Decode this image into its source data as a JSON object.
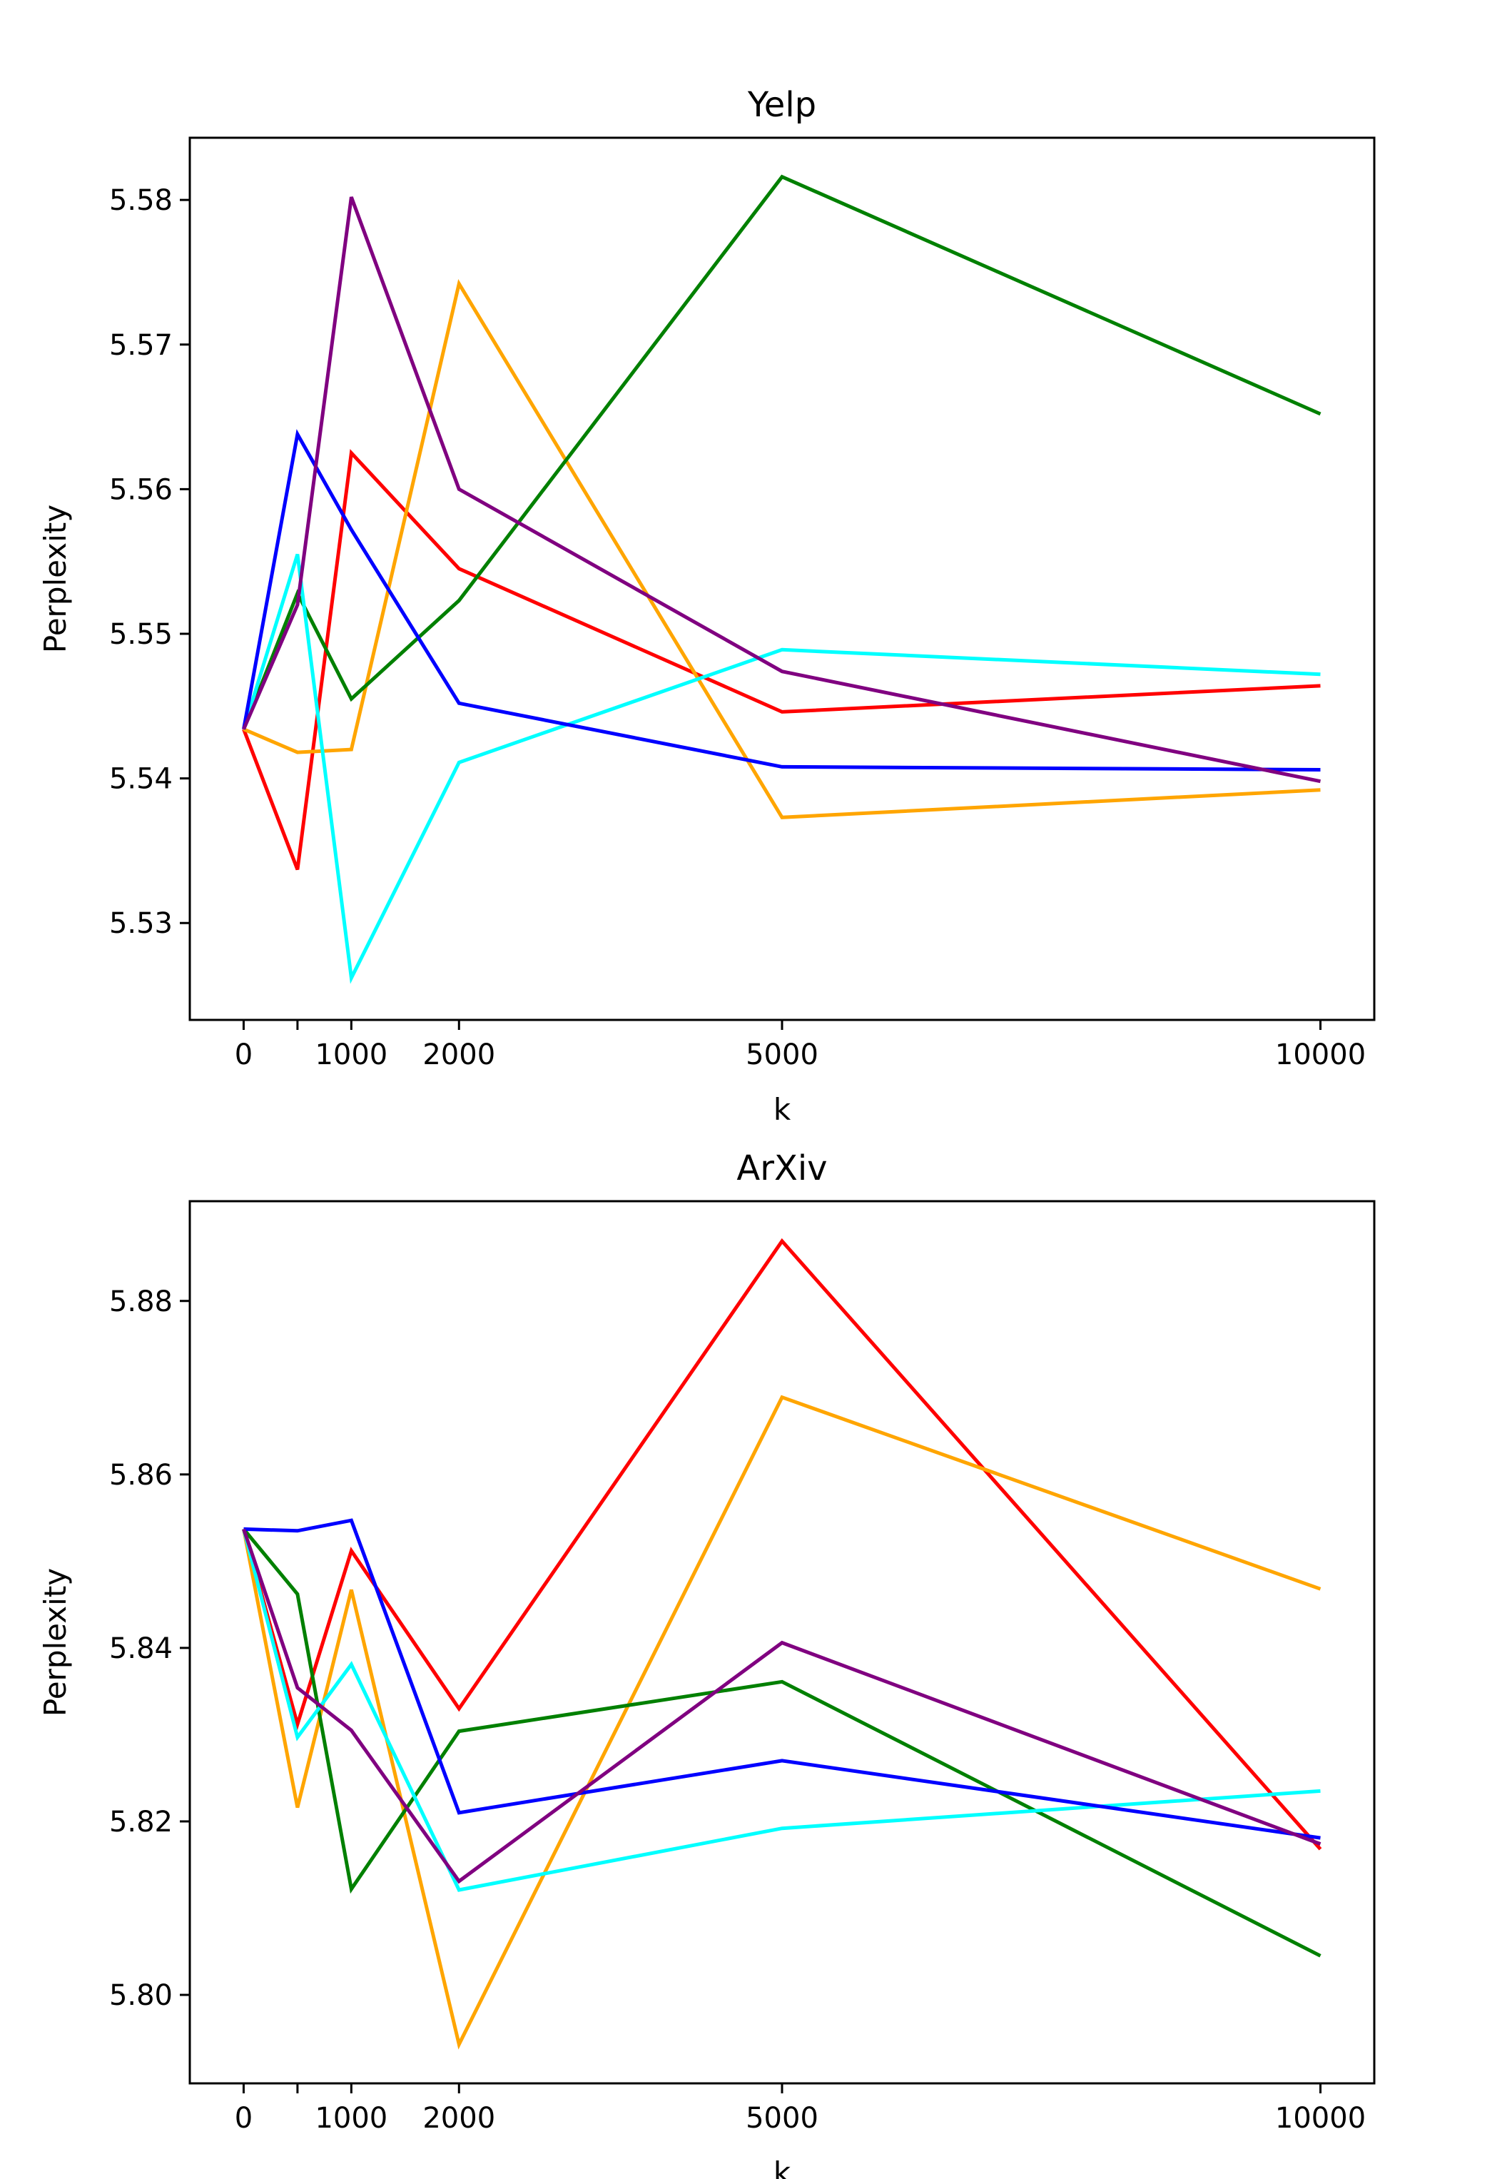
{
  "chart_data": [
    {
      "type": "line",
      "title": "Yelp",
      "xlabel": "k",
      "ylabel": "Perplexity",
      "x": [
        0,
        500,
        1000,
        2000,
        5000,
        10000
      ],
      "xticks": [
        0,
        1000,
        2000,
        5000,
        10000
      ],
      "xtick_labels": [
        "0",
        "1000",
        "2000",
        "5000",
        "10000"
      ],
      "xlim": [
        -500,
        10500
      ],
      "yticks": [
        5.53,
        5.54,
        5.55,
        5.56,
        5.57,
        5.58
      ],
      "ytick_labels": [
        "5.53",
        "5.54",
        "5.55",
        "5.56",
        "5.57",
        "5.58"
      ],
      "ylim": [
        5.5233,
        5.5843
      ],
      "series": [
        {
          "name": "red",
          "color": "#ff0000",
          "values": [
            5.5434,
            5.5337,
            5.5625,
            5.5545,
            5.5446,
            5.5464
          ]
        },
        {
          "name": "orange",
          "color": "#ffa500",
          "values": [
            5.5434,
            5.5418,
            5.542,
            5.5742,
            5.5373,
            5.5392
          ]
        },
        {
          "name": "green",
          "color": "#008000",
          "values": [
            5.5434,
            5.5528,
            5.5455,
            5.5523,
            5.5816,
            5.5652
          ]
        },
        {
          "name": "cyan",
          "color": "#00ffff",
          "values": [
            5.5434,
            5.5555,
            5.5262,
            5.5411,
            5.5489,
            5.5472
          ]
        },
        {
          "name": "blue",
          "color": "#0000ff",
          "values": [
            5.5434,
            5.5638,
            5.5572,
            5.5452,
            5.5408,
            5.5406
          ]
        },
        {
          "name": "purple",
          "color": "#800080",
          "values": [
            5.5434,
            5.552,
            5.5802,
            5.56,
            5.5474,
            5.5398
          ]
        }
      ]
    },
    {
      "type": "line",
      "title": "ArXiv",
      "xlabel": "k",
      "ylabel": "Perplexity",
      "x": [
        0,
        500,
        1000,
        2000,
        5000,
        10000
      ],
      "xticks": [
        0,
        1000,
        2000,
        5000,
        10000
      ],
      "xtick_labels": [
        "0",
        "1000",
        "2000",
        "5000",
        "10000"
      ],
      "xlim": [
        -500,
        10500
      ],
      "yticks": [
        5.8,
        5.82,
        5.84,
        5.86,
        5.88
      ],
      "ytick_labels": [
        "5.80",
        "5.82",
        "5.84",
        "5.86",
        "5.88"
      ],
      "ylim": [
        5.7898,
        5.8915
      ],
      "series": [
        {
          "name": "red",
          "color": "#ff0000",
          "values": [
            5.8537,
            5.8312,
            5.8512,
            5.833,
            5.8869,
            5.8168
          ]
        },
        {
          "name": "orange",
          "color": "#ffa500",
          "values": [
            5.8537,
            5.8216,
            5.8467,
            5.7943,
            5.8689,
            5.8468
          ]
        },
        {
          "name": "green",
          "color": "#008000",
          "values": [
            5.8537,
            5.8462,
            5.8122,
            5.8304,
            5.8361,
            5.8045
          ]
        },
        {
          "name": "cyan",
          "color": "#00ffff",
          "values": [
            5.8537,
            5.8297,
            5.8381,
            5.8121,
            5.8192,
            5.8235
          ]
        },
        {
          "name": "blue",
          "color": "#0000ff",
          "values": [
            5.8537,
            5.8535,
            5.8547,
            5.821,
            5.827,
            5.8181
          ]
        },
        {
          "name": "purple",
          "color": "#800080",
          "values": [
            5.8537,
            5.8354,
            5.8305,
            5.8131,
            5.8406,
            5.8174
          ]
        }
      ]
    }
  ]
}
